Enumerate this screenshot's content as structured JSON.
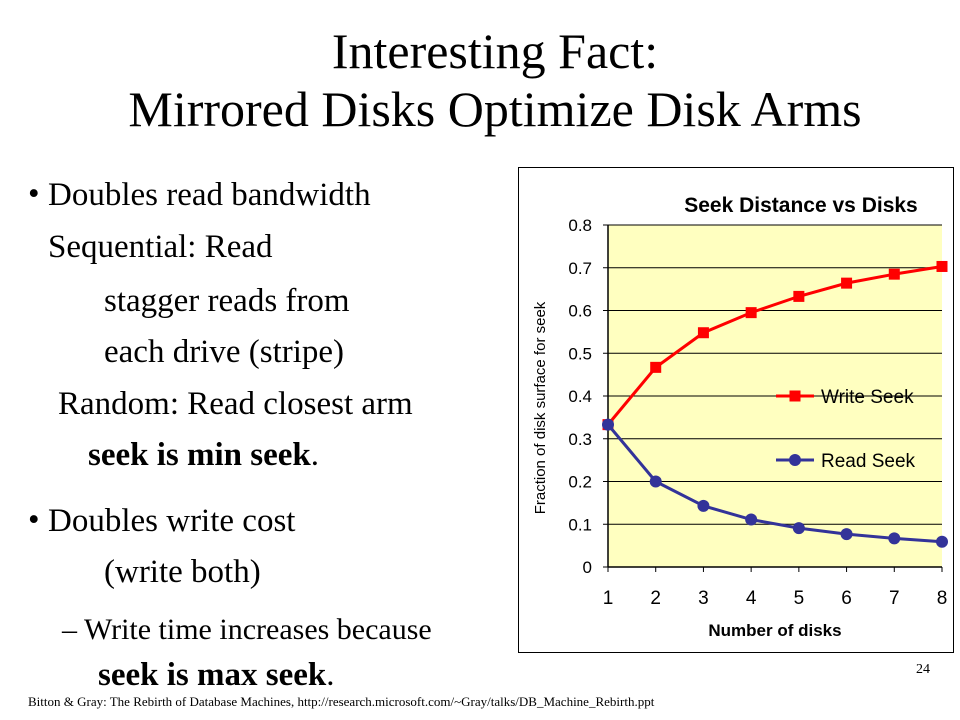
{
  "slide": {
    "title_line1": "Interesting Fact:",
    "title_line2": "Mirrored Disks Optimize Disk Arms",
    "bullet1_line1": "Doubles read bandwidth",
    "bullet1_line2": "Sequential: Read",
    "bullet1_line3": "stagger  reads from",
    "bullet1_line4": "each drive (stripe)",
    "bullet1_line5": "Random: Read closest arm",
    "bullet1_line6_bold": "seek is min seek",
    "bullet1_line6_end": ".",
    "bullet2_line1": "Doubles write cost",
    "bullet2_line2": "(write both)",
    "sub_bullet_line1": "– Write time increases because",
    "sub_bullet_line2_bold": "seek is max seek",
    "sub_bullet_line2_end": ".",
    "footer": "Bitton & Gray: The Rebirth of Database Machines, http://research.microsoft.com/~Gray/talks/DB_Machine_Rebirth.ppt",
    "page_number": "24"
  },
  "chart_data": {
    "type": "line",
    "title": "Seek Distance vs Disks",
    "xlabel": "Number of disks",
    "ylabel": "Fraction of disk surface for seek",
    "x": [
      1,
      2,
      3,
      4,
      5,
      6,
      7,
      8
    ],
    "xlim": [
      1,
      8
    ],
    "ylim": [
      0,
      0.8
    ],
    "yticks": [
      "0",
      "0.1",
      "0.2",
      "0.3",
      "0.4",
      "0.5",
      "0.6",
      "0.7",
      "0.8"
    ],
    "xticks": [
      "1",
      "2",
      "3",
      "4",
      "5",
      "6",
      "7",
      "8"
    ],
    "grid": "horizontal",
    "legend_position": "right",
    "plot_background": "#ffffc0",
    "series": [
      {
        "name": "Write Seek",
        "color": "#ff0000",
        "marker": "square",
        "values": [
          0.333,
          0.467,
          0.548,
          0.595,
          0.633,
          0.664,
          0.685,
          0.703
        ]
      },
      {
        "name": "Read Seek",
        "color": "#333399",
        "marker": "circle",
        "values": [
          0.333,
          0.2,
          0.143,
          0.111,
          0.091,
          0.077,
          0.067,
          0.059
        ]
      }
    ]
  }
}
